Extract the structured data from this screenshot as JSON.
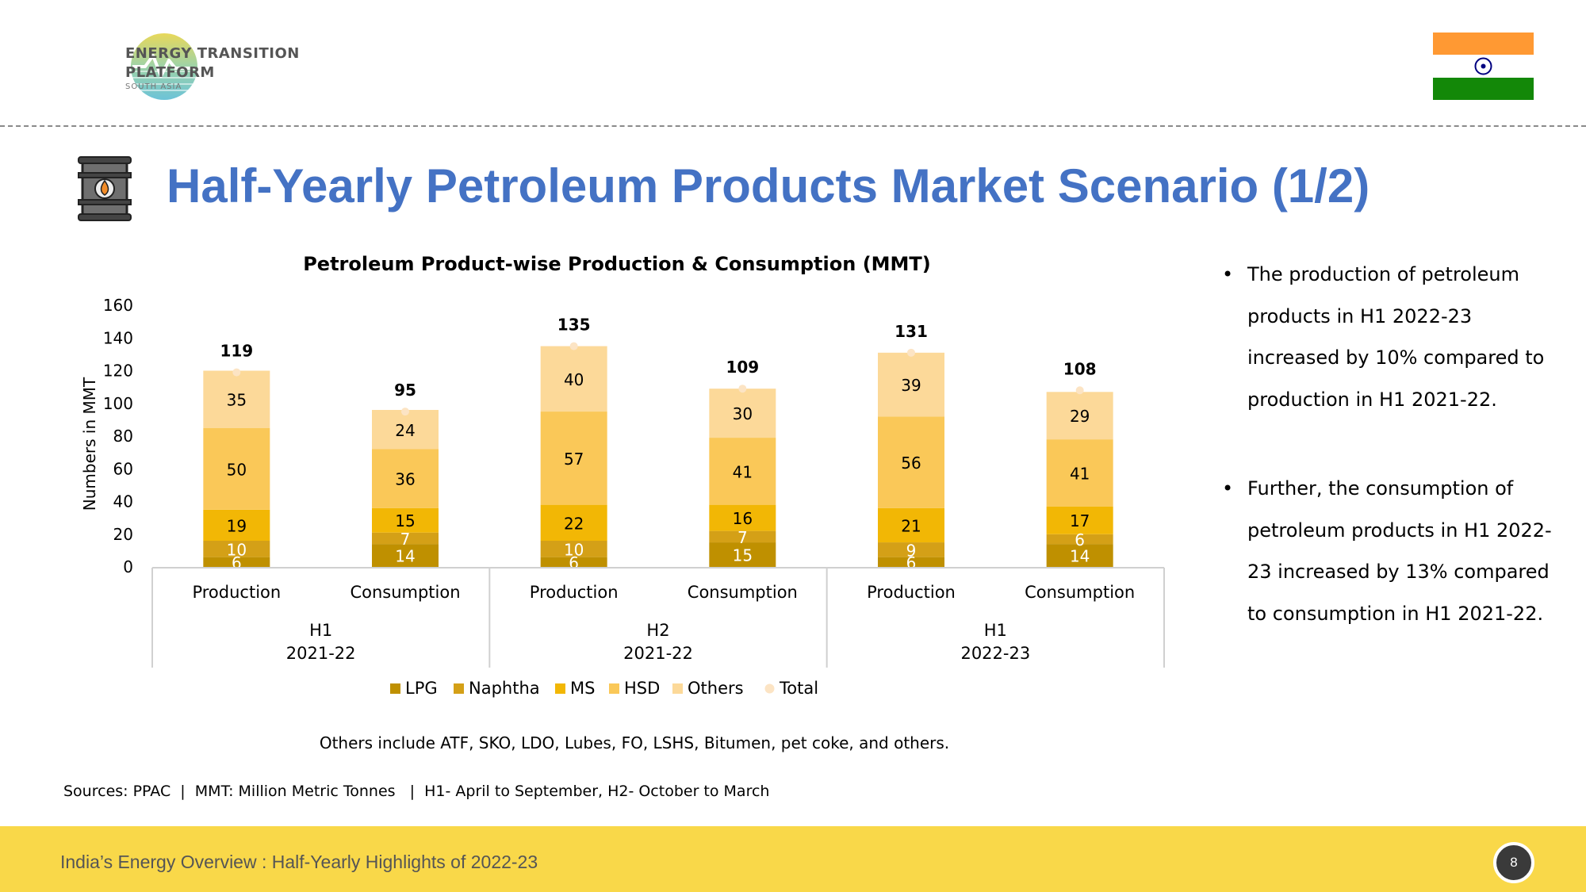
{
  "logo": {
    "line1": "ENERGY TRANSITION",
    "line2": "PLATFORM",
    "sub": "SOUTH ASIA"
  },
  "page": {
    "title": "Half-Yearly Petroleum Products Market Scenario (1/2)",
    "footnote": "Others include ATF, SKO, LDO, Lubes, FO, LSHS, Bitumen, pet coke, and others.",
    "sources": "Sources: PPAC  |  MMT: Million Metric Tonnes   |  H1- April to September, H2- October to March",
    "footer": "India’s Energy Overview : Half-Yearly Highlights of 2022-23",
    "page_number": "8"
  },
  "bullets": [
    "The production of petroleum products in H1 2022-23 increased by 10% compared to production in H1 2021-22.",
    "Further, the consumption of petroleum products in H1 2022-23 increased by 13% compared to consumption in H1 2021-22."
  ],
  "chart_data": {
    "type": "bar",
    "stacked": true,
    "title": "Petroleum Product-wise Production & Consumption (MMT)",
    "ylabel": "Numbers in MMT",
    "ylim": [
      0,
      160
    ],
    "yticks": [
      0,
      20,
      40,
      60,
      80,
      100,
      120,
      140,
      160
    ],
    "categories": [
      "Production",
      "Consumption",
      "Production",
      "Consumption",
      "Production",
      "Consumption"
    ],
    "groups": [
      {
        "line1": "H1",
        "line2": "2021-22"
      },
      {
        "line1": "H2",
        "line2": "2021-22"
      },
      {
        "line1": "H1",
        "line2": "2022-23"
      }
    ],
    "series": [
      {
        "name": "LPG",
        "color": "#BF9000",
        "label_color": "#ffffff",
        "values": [
          6,
          14,
          6,
          15,
          6,
          14
        ]
      },
      {
        "name": "Naphtha",
        "color": "#D4A017",
        "label_color": "#ffffff",
        "values": [
          10,
          7,
          10,
          7,
          9,
          6
        ]
      },
      {
        "name": "MS",
        "color": "#F2B705",
        "label_color": "#000000",
        "values": [
          19,
          15,
          22,
          16,
          21,
          17
        ]
      },
      {
        "name": "HSD",
        "color": "#FAC858",
        "label_color": "#000000",
        "values": [
          50,
          36,
          57,
          41,
          56,
          41
        ]
      },
      {
        "name": "Others",
        "color": "#FCD999",
        "label_color": "#000000",
        "values": [
          35,
          24,
          40,
          30,
          39,
          29
        ]
      }
    ],
    "total": {
      "name": "Total",
      "color": "#FCE4C4",
      "values": [
        119,
        95,
        135,
        109,
        131,
        108
      ]
    }
  }
}
